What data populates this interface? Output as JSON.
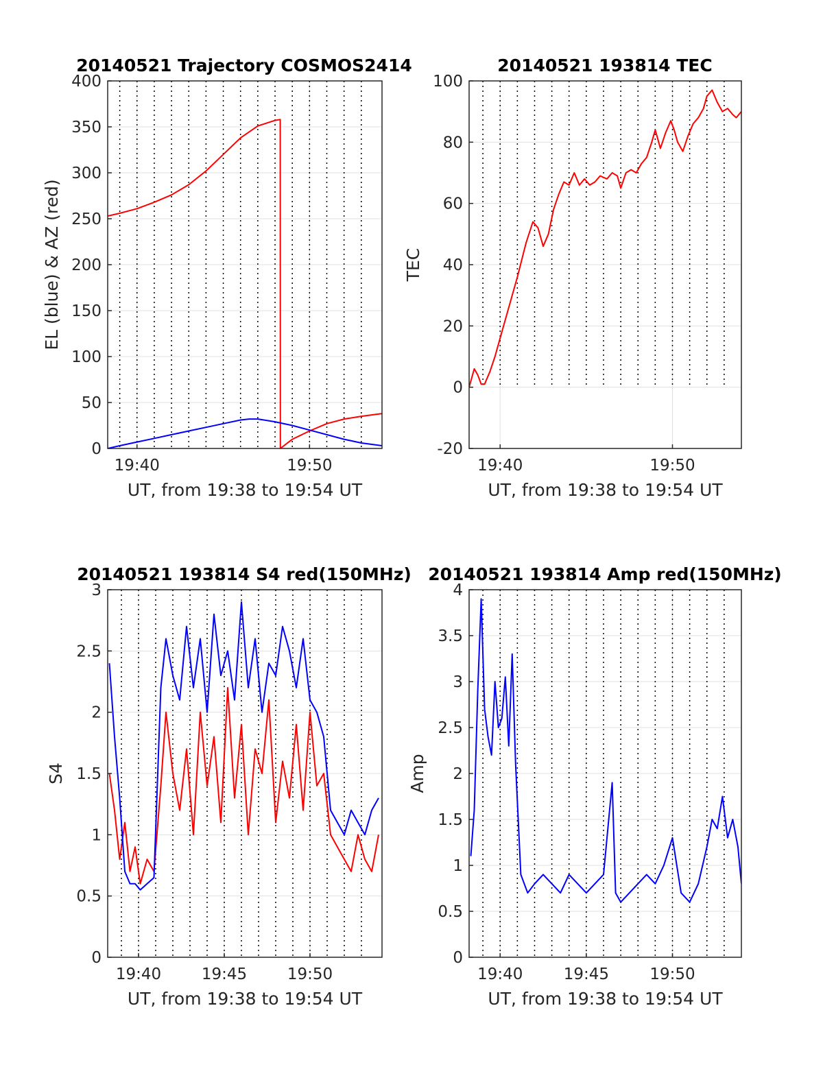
{
  "colors": {
    "el_blue": "#0000ff",
    "az_red": "#ff0000",
    "grid": "#e0e0e0",
    "axis": "#262626"
  },
  "chart_data": [
    {
      "type": "line",
      "title": "20140521 Trajectory COSMOS2414",
      "xlabel": "UT, from 19:38 to 19:54 UT",
      "ylabel": "EL (blue) & AZ (red)",
      "xlim": [
        38.3,
        54.2
      ],
      "ylim": [
        0,
        400
      ],
      "xticks": [
        {
          "v": 40,
          "label": "19:40"
        },
        {
          "v": 50,
          "label": "19:50"
        }
      ],
      "yticks": [
        0,
        50,
        100,
        150,
        200,
        250,
        300,
        350,
        400
      ],
      "minute_lines": [
        39,
        40,
        41,
        42,
        43,
        44,
        45,
        46,
        47,
        48,
        49,
        50,
        51,
        52,
        53
      ],
      "grid": true,
      "series": [
        {
          "color": "#ff0000",
          "x": [
            38.3,
            39,
            40,
            41,
            42,
            43,
            44,
            45,
            46,
            47,
            48,
            48.3,
            48.31,
            49,
            50,
            51,
            52,
            53,
            54.2
          ],
          "y": [
            253,
            256,
            261,
            268,
            276,
            287,
            302,
            320,
            338,
            351,
            357,
            358,
            0,
            10,
            19,
            27,
            32,
            35,
            38
          ]
        },
        {
          "color": "#0000ff",
          "x": [
            38.3,
            39,
            40,
            41,
            42,
            43,
            44,
            45,
            46,
            46.5,
            47,
            48,
            49,
            50,
            51,
            52,
            53,
            54.2
          ],
          "y": [
            0,
            3,
            7,
            11,
            15,
            19,
            23,
            27,
            31,
            32,
            32,
            29,
            25,
            20,
            15,
            10,
            6,
            3
          ]
        }
      ]
    },
    {
      "type": "line",
      "title": "20140521 193814 TEC",
      "xlabel": "UT, from 19:38 to 19:54 UT",
      "ylabel": "TEC",
      "xlim": [
        38.2,
        54.0
      ],
      "ylim": [
        -20,
        100
      ],
      "xticks": [
        {
          "v": 40,
          "label": "19:40"
        },
        {
          "v": 50,
          "label": "19:50"
        }
      ],
      "yticks": [
        -20,
        0,
        20,
        40,
        60,
        80,
        100
      ],
      "minute_lines": [
        39,
        40,
        41,
        42,
        43,
        44,
        45,
        46,
        47,
        48,
        49,
        50,
        51,
        52,
        53
      ],
      "dotted_ymin": 0,
      "grid": true,
      "series": [
        {
          "color": "#ff0000",
          "x": [
            38.2,
            38.5,
            38.7,
            38.9,
            39.1,
            39.4,
            39.7,
            40.0,
            40.5,
            41.0,
            41.5,
            41.9,
            42.2,
            42.5,
            42.8,
            43.1,
            43.4,
            43.7,
            44.0,
            44.3,
            44.6,
            44.9,
            45.2,
            45.5,
            45.8,
            46.2,
            46.5,
            46.8,
            47.0,
            47.3,
            47.6,
            47.9,
            48.2,
            48.5,
            48.8,
            49.0,
            49.3,
            49.6,
            49.9,
            50.1,
            50.3,
            50.6,
            50.9,
            51.2,
            51.5,
            51.8,
            52.0,
            52.3,
            52.6,
            52.9,
            53.2,
            53.5,
            53.7,
            54.0
          ],
          "y": [
            0,
            6,
            4,
            1,
            1,
            5,
            10,
            16,
            26,
            36,
            47,
            54,
            52,
            46,
            50,
            58,
            63,
            67,
            66,
            70,
            66,
            68,
            66,
            67,
            69,
            68,
            70,
            69,
            65,
            70,
            71,
            70,
            73,
            75,
            80,
            84,
            78,
            83,
            87,
            84,
            80,
            77,
            82,
            86,
            88,
            91,
            95,
            97,
            93,
            90,
            91,
            89,
            88,
            90
          ]
        }
      ]
    },
    {
      "type": "line",
      "title": "20140521 193814 S4 red(150MHz)",
      "xlabel": "UT, from 19:38 to 19:54 UT",
      "ylabel": "S4",
      "xlim": [
        38.2,
        54.2
      ],
      "ylim": [
        0,
        3
      ],
      "xticks": [
        {
          "v": 40,
          "label": "19:40"
        },
        {
          "v": 45,
          "label": "19:45"
        },
        {
          "v": 50,
          "label": "19:50"
        }
      ],
      "yticks": [
        0,
        0.5,
        1,
        1.5,
        2,
        2.5,
        3
      ],
      "minute_lines": [
        39,
        40,
        41,
        42,
        43,
        44,
        45,
        46,
        47,
        48,
        49,
        50,
        51,
        52,
        53
      ],
      "grid": true,
      "series": [
        {
          "color": "#ff0000",
          "x": [
            38.3,
            38.6,
            38.9,
            39.2,
            39.5,
            39.8,
            40.1,
            40.5,
            40.9,
            41.3,
            41.6,
            42.0,
            42.4,
            42.8,
            43.2,
            43.6,
            44.0,
            44.4,
            44.8,
            45.2,
            45.6,
            46.0,
            46.4,
            46.8,
            47.2,
            47.6,
            48.0,
            48.4,
            48.8,
            49.2,
            49.6,
            50.0,
            50.4,
            50.8,
            51.2,
            51.6,
            52.0,
            52.4,
            52.8,
            53.2,
            53.6,
            54.0
          ],
          "y": [
            1.5,
            1.2,
            0.8,
            1.1,
            0.7,
            0.9,
            0.6,
            0.8,
            0.7,
            1.4,
            2.0,
            1.5,
            1.2,
            1.7,
            1.0,
            2.0,
            1.4,
            1.8,
            1.1,
            2.2,
            1.3,
            1.9,
            1.0,
            1.7,
            1.5,
            2.1,
            1.1,
            1.6,
            1.3,
            1.9,
            1.2,
            2.0,
            1.4,
            1.5,
            1.0,
            0.9,
            0.8,
            0.7,
            1.0,
            0.8,
            0.7,
            1.0
          ]
        },
        {
          "color": "#0000ff",
          "x": [
            38.3,
            38.6,
            38.9,
            39.2,
            39.5,
            39.8,
            40.1,
            40.5,
            40.9,
            41.3,
            41.6,
            42.0,
            42.4,
            42.8,
            43.2,
            43.6,
            44.0,
            44.4,
            44.8,
            45.2,
            45.6,
            46.0,
            46.4,
            46.8,
            47.2,
            47.6,
            48.0,
            48.4,
            48.8,
            49.2,
            49.6,
            50.0,
            50.4,
            50.8,
            51.2,
            51.6,
            52.0,
            52.4,
            52.8,
            53.2,
            53.6,
            54.0
          ],
          "y": [
            2.4,
            1.8,
            1.3,
            0.7,
            0.6,
            0.6,
            0.55,
            0.6,
            0.65,
            2.2,
            2.6,
            2.3,
            2.1,
            2.7,
            2.2,
            2.6,
            2.0,
            2.8,
            2.3,
            2.5,
            2.1,
            2.9,
            2.2,
            2.6,
            2.0,
            2.4,
            2.3,
            2.7,
            2.5,
            2.2,
            2.6,
            2.1,
            2.0,
            1.8,
            1.2,
            1.1,
            1.0,
            1.2,
            1.1,
            1.0,
            1.2,
            1.3
          ]
        }
      ]
    },
    {
      "type": "line",
      "title": "20140521 193814 Amp red(150MHz)",
      "xlabel": "UT, from 19:38 to 19:54 UT",
      "ylabel": "Amp",
      "xlim": [
        38.2,
        54.0
      ],
      "ylim": [
        0,
        4
      ],
      "xticks": [
        {
          "v": 40,
          "label": "19:40"
        },
        {
          "v": 45,
          "label": "19:45"
        },
        {
          "v": 50,
          "label": "19:50"
        }
      ],
      "yticks": [
        0,
        0.5,
        1,
        1.5,
        2,
        2.5,
        3,
        3.5,
        4
      ],
      "minute_lines": [
        39,
        40,
        41,
        42,
        43,
        44,
        45,
        46,
        47,
        48,
        49,
        50,
        51,
        52,
        53
      ],
      "grid": true,
      "series": [
        {
          "color": "#0000ff",
          "x": [
            38.3,
            38.5,
            38.7,
            38.9,
            39.1,
            39.3,
            39.5,
            39.7,
            39.9,
            40.1,
            40.3,
            40.5,
            40.7,
            40.9,
            41.2,
            41.6,
            42.0,
            42.5,
            43.0,
            43.5,
            44.0,
            44.5,
            45.0,
            45.5,
            46.0,
            46.5,
            46.7,
            47.0,
            47.5,
            48.0,
            48.5,
            49.0,
            49.5,
            50.0,
            50.5,
            51.0,
            51.5,
            52.0,
            52.3,
            52.6,
            52.9,
            53.2,
            53.5,
            53.8,
            54.0
          ],
          "y": [
            1.1,
            1.6,
            2.9,
            3.9,
            2.7,
            2.4,
            2.2,
            3.0,
            2.5,
            2.6,
            3.05,
            2.3,
            3.3,
            2.1,
            0.9,
            0.7,
            0.8,
            0.9,
            0.8,
            0.7,
            0.9,
            0.8,
            0.7,
            0.8,
            0.9,
            1.9,
            0.7,
            0.6,
            0.7,
            0.8,
            0.9,
            0.8,
            1.0,
            1.3,
            0.7,
            0.6,
            0.8,
            1.2,
            1.5,
            1.4,
            1.75,
            1.3,
            1.5,
            1.2,
            0.8
          ]
        }
      ]
    }
  ]
}
